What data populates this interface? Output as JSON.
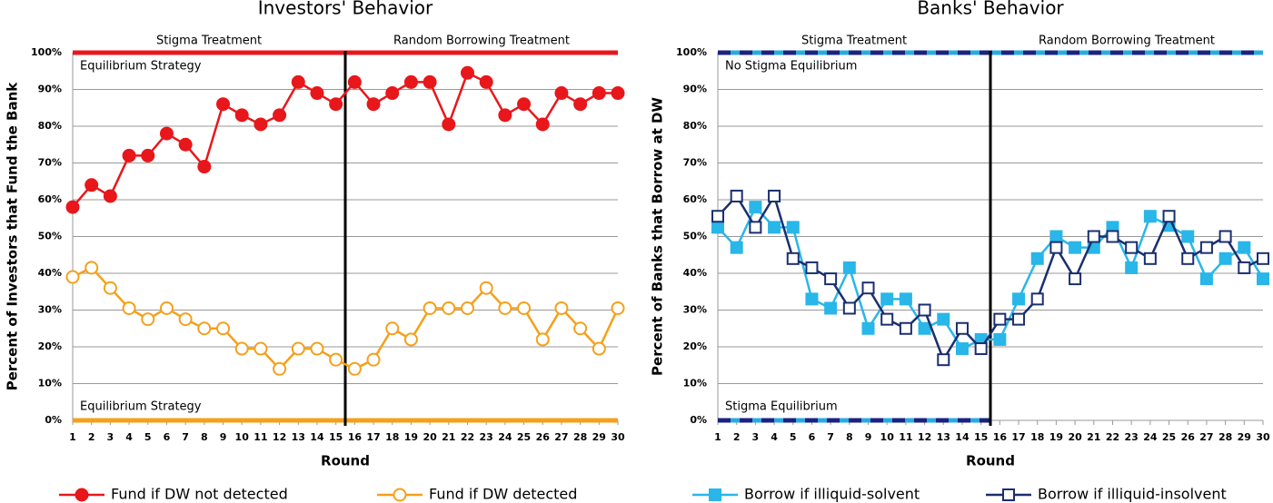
{
  "chart_data": [
    {
      "type": "line",
      "title": "Investors' Behavior",
      "x_label": "Round",
      "y_label": "Percent of Investors that Fund the Bank",
      "x": [
        1,
        2,
        3,
        4,
        5,
        6,
        7,
        8,
        9,
        10,
        11,
        12,
        13,
        14,
        15,
        16,
        17,
        18,
        19,
        20,
        21,
        22,
        23,
        24,
        25,
        26,
        27,
        28,
        29,
        30
      ],
      "xlim": [
        1,
        30
      ],
      "xticks": [
        1,
        2,
        3,
        4,
        5,
        6,
        7,
        8,
        9,
        10,
        11,
        12,
        13,
        14,
        15,
        16,
        17,
        18,
        19,
        20,
        21,
        22,
        23,
        24,
        25,
        26,
        27,
        28,
        29,
        30
      ],
      "ylim": [
        0,
        100
      ],
      "yticks": [
        {
          "value": 0,
          "label": "0%"
        },
        {
          "value": 10,
          "label": "10%"
        },
        {
          "value": 20,
          "label": "20%"
        },
        {
          "value": 30,
          "label": "30%"
        },
        {
          "value": 40,
          "label": "40%"
        },
        {
          "value": 50,
          "label": "50%"
        },
        {
          "value": 60,
          "label": "60%"
        },
        {
          "value": 70,
          "label": "70%"
        },
        {
          "value": 80,
          "label": "80%"
        },
        {
          "value": 90,
          "label": "90%"
        },
        {
          "value": 100,
          "label": "100%"
        }
      ],
      "grid": true,
      "split": 15.5,
      "treatment_labels": [
        "Stigma Treatment",
        "Random Borrowing Treatment"
      ],
      "reference_lines": [
        {
          "value": 100,
          "label": "Equilibrium Strategy",
          "colors": [
            "#e8171b"
          ]
        },
        {
          "value": 0,
          "label": "Equilibrium Strategy",
          "colors": [
            "#f5a01a"
          ]
        }
      ],
      "series": [
        {
          "name": "Fund if DW not detected",
          "color": "#e8171b",
          "marker": "circle",
          "filled": true,
          "values": [
            58,
            64,
            61,
            72,
            72,
            78,
            75,
            69,
            86,
            83,
            80.5,
            83,
            92,
            89,
            86,
            92,
            86,
            89,
            92,
            92,
            80.5,
            94.5,
            92,
            83,
            86,
            80.5,
            89,
            86,
            89,
            89
          ]
        },
        {
          "name": "Fund if DW detected",
          "color": "#f5a01a",
          "marker": "circle",
          "filled": false,
          "values": [
            39,
            41.5,
            36,
            30.5,
            27.5,
            30.5,
            27.5,
            25,
            25,
            19.5,
            19.5,
            14,
            19.5,
            19.5,
            16.5,
            14,
            16.5,
            25,
            22,
            30.5,
            30.5,
            30.5,
            36,
            30.5,
            30.5,
            22,
            30.5,
            25,
            19.5,
            30.5
          ]
        }
      ]
    },
    {
      "type": "line",
      "title": "Banks' Behavior",
      "x_label": "Round",
      "y_label": "Percent of Banks that Borrow at DW",
      "x": [
        1,
        2,
        3,
        4,
        5,
        6,
        7,
        8,
        9,
        10,
        11,
        12,
        13,
        14,
        15,
        16,
        17,
        18,
        19,
        20,
        21,
        22,
        23,
        24,
        25,
        26,
        27,
        28,
        29,
        30
      ],
      "xlim": [
        1,
        30
      ],
      "xticks": [
        1,
        2,
        3,
        4,
        5,
        6,
        7,
        8,
        9,
        10,
        11,
        12,
        13,
        14,
        15,
        16,
        17,
        18,
        19,
        20,
        21,
        22,
        23,
        24,
        25,
        26,
        27,
        28,
        29,
        30
      ],
      "ylim": [
        0,
        100
      ],
      "yticks": [
        {
          "value": 0,
          "label": "0%"
        },
        {
          "value": 10,
          "label": "10%"
        },
        {
          "value": 20,
          "label": "20%"
        },
        {
          "value": 30,
          "label": "30%"
        },
        {
          "value": 40,
          "label": "40%"
        },
        {
          "value": 50,
          "label": "50%"
        },
        {
          "value": 60,
          "label": "60%"
        },
        {
          "value": 70,
          "label": "70%"
        },
        {
          "value": 80,
          "label": "80%"
        },
        {
          "value": 90,
          "label": "90%"
        },
        {
          "value": 100,
          "label": "100%"
        }
      ],
      "grid": true,
      "split": 15.5,
      "treatment_labels": [
        "Stigma Treatment",
        "Random Borrowing Treatment"
      ],
      "reference_lines": [
        {
          "value": 100,
          "label": "No Stigma  Equilibrium",
          "colors": [
            "#29abe2",
            "#1a237e"
          ]
        },
        {
          "value": 0,
          "label": "Stigma Equilibrium",
          "colors": [
            "#29abe2",
            "#1a237e"
          ],
          "to": 15.5
        }
      ],
      "series": [
        {
          "name": "Borrow if illiquid-solvent",
          "color": "#29b6e8",
          "marker": "square",
          "filled": true,
          "values": [
            52.5,
            47,
            58,
            52.5,
            52.5,
            33,
            30.5,
            41.5,
            25,
            33,
            33,
            25,
            27.5,
            19.5,
            22,
            22,
            33,
            44,
            50,
            47,
            47,
            52.5,
            41.5,
            55.5,
            53,
            50,
            38.5,
            44,
            47,
            38.5
          ]
        },
        {
          "name": "Borrow if illiquid-insolvent",
          "color": "#1a2f6e",
          "marker": "square",
          "filled": false,
          "values": [
            55.5,
            61,
            52.5,
            61,
            44,
            41.5,
            38.5,
            30.5,
            36,
            27.5,
            25,
            30,
            16.5,
            25,
            19.5,
            27.5,
            27.5,
            33,
            47,
            38.5,
            50,
            50,
            47,
            44,
            55.5,
            44,
            47,
            50,
            41.5,
            44
          ]
        }
      ]
    }
  ]
}
